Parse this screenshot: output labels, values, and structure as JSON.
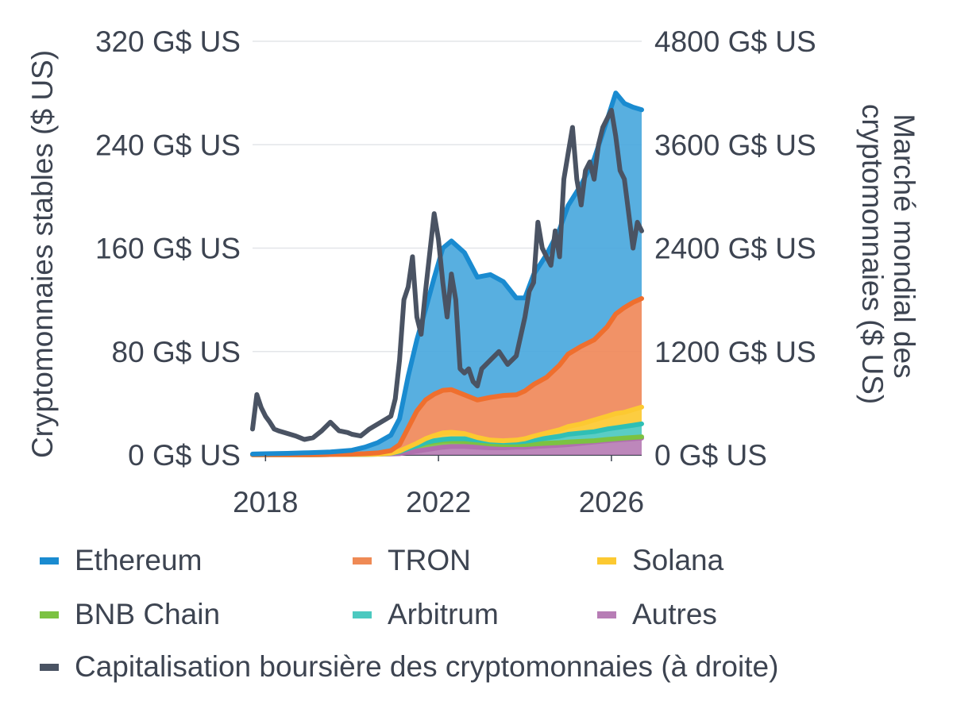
{
  "chart_data": {
    "type": "area",
    "ylabel_left": "Cryptomonnaies stables ($ US)",
    "ylabel_right": "Marché mondial des cryptomonnaies ($ US)",
    "x_ticks": [
      {
        "value": 2018,
        "label": "2018"
      },
      {
        "value": 2022,
        "label": "2022"
      },
      {
        "value": 2026,
        "label": "2026"
      }
    ],
    "xlim": [
      2017.7,
      2026.7
    ],
    "ylim_left": [
      0,
      320
    ],
    "ylim_right": [
      0,
      4800
    ],
    "y_ticks_left": [
      {
        "value": 0,
        "label": "0 G$ US"
      },
      {
        "value": 80,
        "label": "80 G$ US"
      },
      {
        "value": 160,
        "label": "160 G$ US"
      },
      {
        "value": 240,
        "label": "240 G$ US"
      },
      {
        "value": 320,
        "label": "320 G$ US"
      }
    ],
    "y_ticks_right": [
      {
        "value": 0,
        "label": "0 G$ US"
      },
      {
        "value": 1200,
        "label": "1200 G$ US"
      },
      {
        "value": 2400,
        "label": "2400 G$ US"
      },
      {
        "value": 3600,
        "label": "3600 G$ US"
      },
      {
        "value": 4800,
        "label": "4800 G$ US"
      }
    ],
    "grid": true,
    "legend_position": "bottom",
    "x": [
      2017.7,
      2018.0,
      2018.5,
      2019.0,
      2019.5,
      2020.0,
      2020.3,
      2020.6,
      2020.9,
      2021.1,
      2021.3,
      2021.5,
      2021.7,
      2021.9,
      2022.1,
      2022.3,
      2022.6,
      2022.9,
      2023.2,
      2023.5,
      2023.8,
      2024.0,
      2024.2,
      2024.5,
      2024.8,
      2025.0,
      2025.3,
      2025.6,
      2025.9,
      2026.1,
      2026.3,
      2026.5,
      2026.7
    ],
    "stacked_series": [
      {
        "name": "Autres",
        "color": "#b77db5",
        "values": [
          0.2,
          0.2,
          0.2,
          0.2,
          0.3,
          0.4,
          0.5,
          0.6,
          0.8,
          1,
          2,
          3,
          4,
          5,
          6,
          6.5,
          6.5,
          6,
          5.5,
          5.5,
          6,
          6,
          6.5,
          7,
          7.5,
          8,
          9,
          10,
          11,
          11.5,
          12,
          12.5,
          13
        ]
      },
      {
        "name": "BNB Chain",
        "color": "#7cc242",
        "values": [
          0,
          0,
          0,
          0,
          0,
          0,
          0,
          0,
          0.5,
          1.5,
          3,
          4,
          5,
          5,
          5,
          4.5,
          4,
          3.5,
          3,
          2.5,
          2,
          2,
          2,
          2,
          2,
          2,
          1.5,
          1,
          1,
          1,
          1,
          1,
          1
        ]
      },
      {
        "name": "Arbitrum",
        "color": "#4cc9c0",
        "values": [
          0,
          0,
          0,
          0,
          0,
          0,
          0,
          0,
          0,
          0,
          0,
          0,
          0.5,
          1,
          1,
          1.5,
          2,
          2,
          2,
          2,
          2,
          2.5,
          3,
          4,
          5,
          6,
          6.5,
          7,
          8,
          8.5,
          9,
          9.5,
          10
        ]
      },
      {
        "name": "Solana",
        "color": "#fcc931",
        "values": [
          0,
          0,
          0,
          0,
          0,
          0,
          0,
          0,
          0,
          0.5,
          1,
          2,
          3,
          4,
          5,
          5,
          4,
          2,
          1,
          1,
          1.5,
          2,
          3,
          4,
          5,
          6,
          7,
          9,
          10,
          11,
          11,
          12,
          13
        ]
      },
      {
        "name": "TRON",
        "color": "#f0895a",
        "values": [
          0,
          0,
          0,
          0,
          0,
          0.2,
          0.5,
          1,
          2,
          5,
          15,
          25,
          30,
          32,
          33,
          33,
          30,
          29,
          33,
          35,
          35,
          37,
          40,
          43,
          50,
          56,
          60,
          62,
          69,
          77,
          81,
          83,
          84
        ]
      },
      {
        "name": "Ethereum",
        "color": "#4aa8dd",
        "values": [
          0.5,
          0.7,
          1,
          1.5,
          2,
          3,
          5,
          8,
          12,
          20,
          40,
          55,
          70,
          90,
          110,
          115,
          110,
          95,
          95,
          88,
          75,
          72,
          85,
          95,
          105,
          115,
          125,
          140,
          160,
          171,
          158,
          151,
          146
        ]
      }
    ],
    "ethereum_line_color": "#1a8bd0",
    "tron_line_color": "#ef6f2e",
    "line_series": {
      "name": "Capitalisation boursière des cryptomonnaies (à droite)",
      "axis": "right",
      "color": "#4a5363",
      "x": [
        2017.7,
        2017.8,
        2017.9,
        2018.0,
        2018.1,
        2018.2,
        2018.3,
        2018.5,
        2018.7,
        2018.9,
        2019.1,
        2019.3,
        2019.5,
        2019.7,
        2019.9,
        2020.0,
        2020.2,
        2020.4,
        2020.6,
        2020.8,
        2020.9,
        2021.0,
        2021.1,
        2021.2,
        2021.3,
        2021.4,
        2021.5,
        2021.6,
        2021.7,
        2021.8,
        2021.9,
        2022.0,
        2022.1,
        2022.2,
        2022.3,
        2022.4,
        2022.5,
        2022.6,
        2022.7,
        2022.8,
        2022.9,
        2023.0,
        2023.2,
        2023.4,
        2023.6,
        2023.8,
        2024.0,
        2024.1,
        2024.2,
        2024.3,
        2024.4,
        2024.5,
        2024.6,
        2024.7,
        2024.8,
        2024.9,
        2025.0,
        2025.1,
        2025.2,
        2025.3,
        2025.4,
        2025.5,
        2025.6,
        2025.7,
        2025.8,
        2025.9,
        2026.0,
        2026.1,
        2026.2,
        2026.3,
        2026.4,
        2026.5,
        2026.6,
        2026.7
      ],
      "values": [
        300,
        700,
        550,
        450,
        380,
        300,
        280,
        250,
        220,
        180,
        200,
        280,
        380,
        280,
        260,
        240,
        220,
        300,
        360,
        420,
        450,
        650,
        1100,
        1800,
        1950,
        2300,
        1600,
        1400,
        1900,
        2350,
        2800,
        2500,
        2000,
        1600,
        2100,
        1800,
        1000,
        950,
        1000,
        850,
        800,
        1000,
        1100,
        1200,
        1050,
        1150,
        1600,
        1900,
        2000,
        2700,
        2400,
        2300,
        2200,
        2600,
        2300,
        3200,
        3500,
        3800,
        3200,
        2900,
        3300,
        3400,
        3200,
        3600,
        3800,
        3900,
        4000,
        3700,
        3300,
        3200,
        2800,
        2400,
        2700,
        2600
      ]
    }
  },
  "legend": [
    {
      "label": "Ethereum",
      "color": "#1a8bd0"
    },
    {
      "label": "TRON",
      "color": "#ef8a55"
    },
    {
      "label": "Solana",
      "color": "#fcc931"
    },
    {
      "label": "BNB Chain",
      "color": "#7cc242"
    },
    {
      "label": "Arbitrum",
      "color": "#4cc9c0"
    },
    {
      "label": "Autres",
      "color": "#b77db5"
    },
    {
      "label": "Capitalisation boursière des cryptomonnaies (à droite)",
      "color": "#4a5363"
    }
  ]
}
